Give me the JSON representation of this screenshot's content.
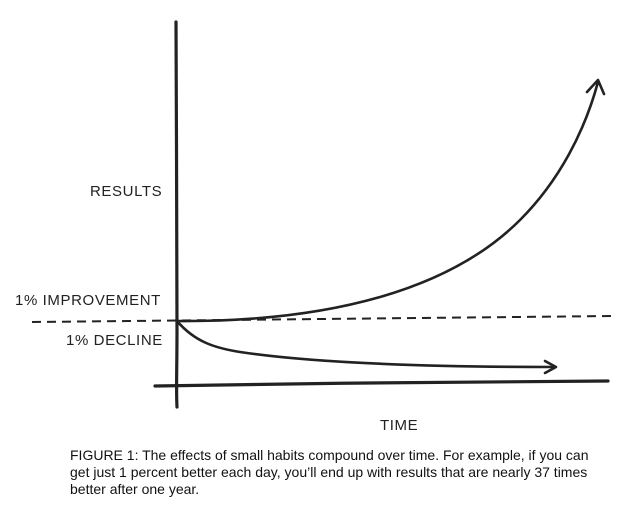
{
  "chart": {
    "ylabel": "RESULTS",
    "xlabel": "TIME",
    "improvement_label": "1% IMPROVEMENT",
    "decline_label": "1% DECLINE",
    "line_color": "#222222"
  },
  "caption": "FIGURE 1: The effects of small habits compound over time. For example, if you can get just 1 percent better each day, you’ll end up with results that are nearly 37 times better after one year."
}
